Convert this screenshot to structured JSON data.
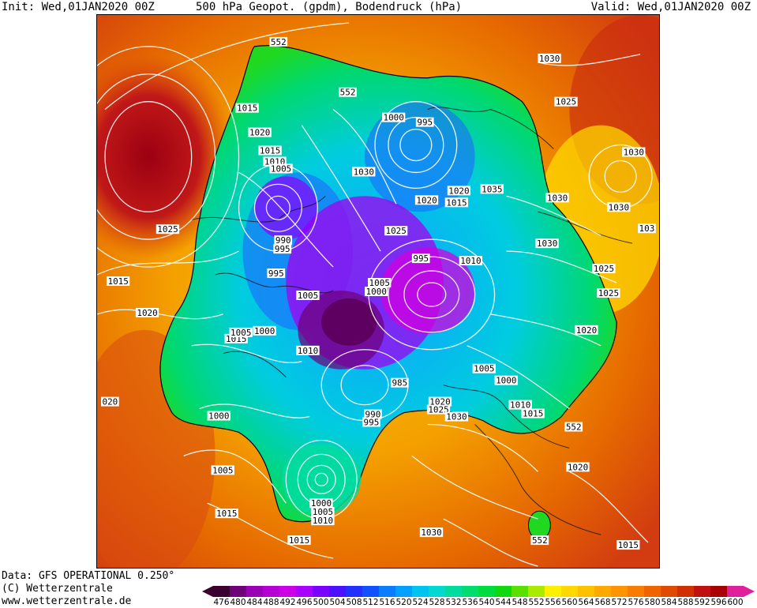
{
  "header": {
    "init": "Init: Wed,01JAN2020 00Z",
    "title": "500 hPa Geopot. (gpdm), Bodendruck (hPa)",
    "valid": "Valid: Wed,01JAN2020 00Z"
  },
  "footer": {
    "data_source": "Data: GFS OPERATIONAL 0.250°",
    "copyright": "(C) Wetterzentrale",
    "website": "www.wetterzentrale.de"
  },
  "colorbar": {
    "ticks": [
      "476",
      "480",
      "484",
      "488",
      "492",
      "496",
      "500",
      "504",
      "508",
      "512",
      "516",
      "520",
      "524",
      "528",
      "532",
      "536",
      "540",
      "544",
      "548",
      "552",
      "556",
      "560",
      "564",
      "568",
      "572",
      "576",
      "580",
      "584",
      "588",
      "592",
      "596",
      "600"
    ],
    "colors": [
      "#3a0030",
      "#6e0078",
      "#9a00b4",
      "#b400d2",
      "#cc00e6",
      "#a800ff",
      "#7a00ff",
      "#4a10ff",
      "#2030ff",
      "#1050ff",
      "#0a7cff",
      "#00a0ff",
      "#00c4f0",
      "#00d8d0",
      "#00dca0",
      "#00dc70",
      "#00dc40",
      "#10d810",
      "#5ae000",
      "#aaea00",
      "#fff000",
      "#ffd800",
      "#ffc000",
      "#ffa800",
      "#ff9400",
      "#f87c00",
      "#f06400",
      "#e04a00",
      "#d03000",
      "#c01010",
      "#a80000",
      "#e0209a"
    ]
  },
  "map": {
    "contour_labels_hpa": [
      {
        "t": "1015"
      },
      {
        "t": "1020"
      },
      {
        "t": "1015"
      },
      {
        "t": "1010"
      },
      {
        "t": "1005"
      },
      {
        "t": "1025"
      },
      {
        "t": "1015"
      },
      {
        "t": "1020"
      },
      {
        "t": "990"
      },
      {
        "t": "995"
      },
      {
        "t": "995"
      },
      {
        "t": "1005"
      },
      {
        "t": "1000"
      },
      {
        "t": "1005"
      },
      {
        "t": "1010"
      },
      {
        "t": "020"
      },
      {
        "t": "1000"
      },
      {
        "t": "1005"
      },
      {
        "t": "1015"
      },
      {
        "t": "1000"
      },
      {
        "t": "995"
      },
      {
        "t": "1030"
      },
      {
        "t": "1025"
      },
      {
        "t": "1030"
      },
      {
        "t": "1015"
      },
      {
        "t": "1020"
      },
      {
        "t": "1020"
      },
      {
        "t": "1015"
      },
      {
        "t": "1035"
      },
      {
        "t": "1030"
      },
      {
        "t": "1025"
      },
      {
        "t": "1030"
      },
      {
        "t": "1030"
      },
      {
        "t": "1030"
      },
      {
        "t": "103"
      },
      {
        "t": "1025"
      },
      {
        "t": "1025"
      },
      {
        "t": "1020"
      },
      {
        "t": "995"
      },
      {
        "t": "1010"
      },
      {
        "t": "1005"
      },
      {
        "t": "1000"
      },
      {
        "t": "985"
      },
      {
        "t": "990"
      },
      {
        "t": "995"
      },
      {
        "t": "1005"
      },
      {
        "t": "1000"
      },
      {
        "t": "1020"
      },
      {
        "t": "1025"
      },
      {
        "t": "1030"
      },
      {
        "t": "1010"
      },
      {
        "t": "1015"
      },
      {
        "t": "1020"
      },
      {
        "t": "1000"
      },
      {
        "t": "1005"
      },
      {
        "t": "1010"
      },
      {
        "t": "1030"
      },
      {
        "t": "1015"
      },
      {
        "t": "1015"
      }
    ],
    "contour_labels_gpdm": [
      {
        "t": "552"
      },
      {
        "t": "552"
      },
      {
        "t": "552"
      },
      {
        "t": "552"
      }
    ]
  }
}
